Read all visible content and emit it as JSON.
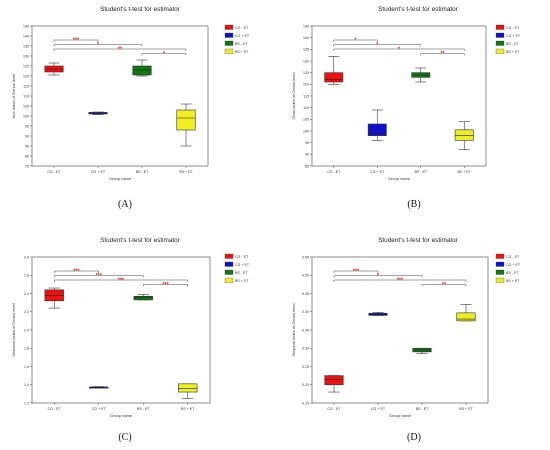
{
  "chart_data": [
    {
      "panel_label": "(A)",
      "type": "box",
      "title": "Student's t-test for estimator",
      "xlabel": "Group name",
      "ylabel": "Ace index of Genus level",
      "ylim": [
        75,
        145
      ],
      "yticks": [
        75,
        80,
        85,
        90,
        95,
        100,
        105,
        110,
        115,
        120,
        125,
        130,
        135,
        140,
        145
      ],
      "categories": [
        "CG - ET",
        "CG + ET",
        "BS - ET",
        "BS + ET"
      ],
      "colors": [
        "#ee1111",
        "#1111cc",
        "#117711",
        "#eeee22"
      ],
      "boxes": [
        {
          "min": 120.5,
          "q1": 122,
          "median": 123.5,
          "q3": 125,
          "max": 126.5
        },
        {
          "min": 100.7,
          "q1": 101,
          "median": 101.5,
          "q3": 101.8,
          "max": 102
        },
        {
          "min": 120,
          "q1": 120.5,
          "median": 123,
          "q3": 125,
          "max": 128
        },
        {
          "min": 85,
          "q1": 93,
          "median": 99,
          "q3": 103,
          "max": 106
        }
      ],
      "significance": [
        {
          "from": 0,
          "to": 1,
          "label": "***"
        },
        {
          "from": 0,
          "to": 2,
          "label": "*"
        },
        {
          "from": 0,
          "to": 3,
          "label": "**"
        },
        {
          "from": 2,
          "to": 3,
          "label": "*"
        }
      ],
      "legend": [
        "CG - ET",
        "CG + ET",
        "BS - ET",
        "BS + ET"
      ]
    },
    {
      "panel_label": "(B)",
      "type": "box",
      "title": "Student's t-test for estimator",
      "xlabel": "Group name",
      "ylabel": "Chao index of Genus level",
      "ylim": [
        85,
        145
      ],
      "yticks": [
        85,
        90,
        95,
        100,
        105,
        110,
        115,
        120,
        125,
        130,
        135,
        140,
        145
      ],
      "categories": [
        "CG - ET",
        "CG + ET",
        "BS - ET",
        "BS + ET"
      ],
      "colors": [
        "#ee1111",
        "#1111cc",
        "#117711",
        "#eeee22"
      ],
      "boxes": [
        {
          "min": 120,
          "q1": 121,
          "median": 122,
          "q3": 125,
          "max": 132
        },
        {
          "min": 96,
          "q1": 98,
          "median": 99,
          "q3": 103,
          "max": 109
        },
        {
          "min": 121,
          "q1": 123,
          "median": 124,
          "q3": 125,
          "max": 127
        },
        {
          "min": 92,
          "q1": 96,
          "median": 98,
          "q3": 100.5,
          "max": 104
        }
      ],
      "significance": [
        {
          "from": 0,
          "to": 1,
          "label": "*"
        },
        {
          "from": 0,
          "to": 2,
          "label": "*"
        },
        {
          "from": 0,
          "to": 3,
          "label": "*"
        },
        {
          "from": 2,
          "to": 3,
          "label": "**"
        }
      ],
      "legend": [
        "CG - ET",
        "CG + ET",
        "BS - ET",
        "BS + ET"
      ]
    },
    {
      "panel_label": "(C)",
      "type": "box",
      "title": "Student's t-test for estimator",
      "xlabel": "Group name",
      "ylabel": "Shannon index of Genus level",
      "ylim": [
        1.2,
        2.8
      ],
      "yticks": [
        1.2,
        1.4,
        1.6,
        1.8,
        2.0,
        2.2,
        2.4,
        2.6,
        2.8
      ],
      "categories": [
        "CG - ET",
        "CG + ET",
        "BS - ET",
        "BS + ET"
      ],
      "colors": [
        "#ee1111",
        "#1111cc",
        "#117711",
        "#eeee22"
      ],
      "boxes": [
        {
          "min": 2.24,
          "q1": 2.32,
          "median": 2.38,
          "q3": 2.44,
          "max": 2.46
        },
        {
          "min": 1.365,
          "q1": 1.368,
          "median": 1.372,
          "q3": 1.376,
          "max": 1.38
        },
        {
          "min": 2.33,
          "q1": 2.33,
          "median": 2.36,
          "q3": 2.37,
          "max": 2.39
        },
        {
          "min": 1.25,
          "q1": 1.32,
          "median": 1.36,
          "q3": 1.41,
          "max": 1.41
        }
      ],
      "significance": [
        {
          "from": 0,
          "to": 1,
          "label": "***"
        },
        {
          "from": 0,
          "to": 2,
          "label": "***"
        },
        {
          "from": 0,
          "to": 3,
          "label": "***"
        },
        {
          "from": 2,
          "to": 3,
          "label": "***"
        }
      ],
      "legend": [
        "CG - ET",
        "CG + ET",
        "BS - ET",
        "BS + ET"
      ]
    },
    {
      "panel_label": "(D)",
      "type": "box",
      "title": "Student's t-test for estimator",
      "xlabel": "Group name",
      "ylabel": "Simpson index of Genus level",
      "ylim": [
        0.15,
        0.55
      ],
      "yticks": [
        0.15,
        0.2,
        0.25,
        0.3,
        0.35,
        0.4,
        0.45,
        0.5,
        0.55
      ],
      "categories": [
        "CG - ET",
        "CG + ET",
        "BS - ET",
        "BS + ET"
      ],
      "colors": [
        "#ee1111",
        "#1111cc",
        "#117711",
        "#eeee22"
      ],
      "boxes": [
        {
          "min": 0.18,
          "q1": 0.2,
          "median": 0.215,
          "q3": 0.225,
          "max": 0.225
        },
        {
          "min": 0.39,
          "q1": 0.39,
          "median": 0.393,
          "q3": 0.396,
          "max": 0.398
        },
        {
          "min": 0.285,
          "q1": 0.29,
          "median": 0.295,
          "q3": 0.3,
          "max": 0.3
        },
        {
          "min": 0.375,
          "q1": 0.375,
          "median": 0.38,
          "q3": 0.397,
          "max": 0.42
        }
      ],
      "significance": [
        {
          "from": 0,
          "to": 1,
          "label": "***"
        },
        {
          "from": 0,
          "to": 2,
          "label": "*"
        },
        {
          "from": 0,
          "to": 3,
          "label": "***"
        },
        {
          "from": 2,
          "to": 3,
          "label": "**"
        }
      ],
      "legend": [
        "CG - ET",
        "CG + ET",
        "BS - ET",
        "BS + ET"
      ]
    }
  ]
}
